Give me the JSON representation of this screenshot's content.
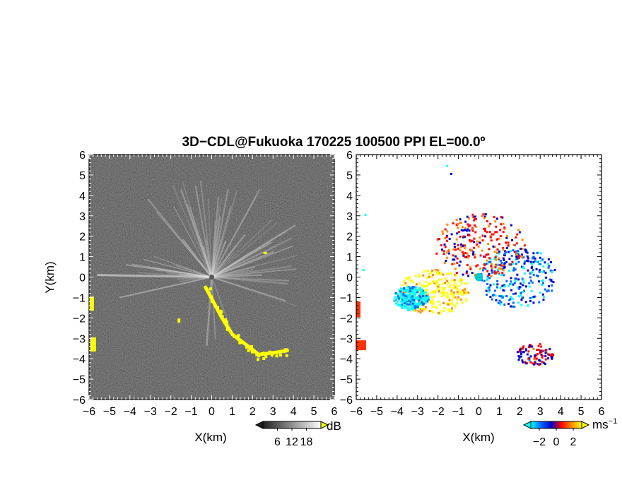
{
  "title": "3D−CDL@Fukuoka 170225 100500 PPI EL=00.0º",
  "chart_data": [
    {
      "type": "heatmap",
      "panel": "left",
      "quantity": "SNR",
      "xlabel": "X(km)",
      "ylabel": "Y(km)",
      "xlim": [
        -6,
        6
      ],
      "ylim": [
        -6,
        6
      ],
      "xticks": [
        "−6",
        "−5",
        "−4",
        "−3",
        "−2",
        "−1",
        "0",
        "1",
        "2",
        "3",
        "4",
        "5",
        "6"
      ],
      "yticks": [
        "6",
        "5",
        "4",
        "3",
        "2",
        "1",
        "0",
        "−1",
        "−2",
        "−3",
        "−4",
        "−5",
        "−6"
      ],
      "background": "noisy dark grey",
      "colorbar": {
        "unit": "dB",
        "ticks": [
          "6",
          "12",
          "18"
        ],
        "range": [
          0,
          24
        ],
        "colors": [
          "#202020",
          "#ffffff"
        ],
        "over_color": "#ffff00"
      },
      "features": [
        {
          "name": "radial beams",
          "fan": "northeast / east / west",
          "level": "bright grey"
        },
        {
          "name": "hard target echo",
          "path": [
            [
              -0.3,
              -0.5
            ],
            [
              0.5,
              -2.0
            ],
            [
              1.0,
              -2.8
            ],
            [
              1.8,
              -3.4
            ],
            [
              2.3,
              -3.8
            ],
            [
              3.1,
              -3.7
            ],
            [
              3.7,
              -3.6
            ]
          ],
          "color": "#ffff00"
        },
        {
          "name": "west edge echo",
          "points": [
            [
              -5.9,
              -1.3
            ],
            [
              -5.8,
              -3.3
            ]
          ],
          "color": "#ffff00"
        }
      ]
    },
    {
      "type": "heatmap",
      "panel": "right",
      "quantity": "radial velocity",
      "xlabel": "X(km)",
      "ylabel": "",
      "xlim": [
        -6,
        6
      ],
      "ylim": [
        -6,
        6
      ],
      "xticks": [
        "−6",
        "−5",
        "−4",
        "−3",
        "−2",
        "−1",
        "0",
        "1",
        "2",
        "3",
        "4",
        "5",
        "6"
      ],
      "yticks": [
        "6",
        "5",
        "4",
        "3",
        "2",
        "1",
        "0",
        "−1",
        "−2",
        "−3",
        "−4",
        "−5",
        "−6"
      ],
      "background": "white",
      "colorbar": {
        "unit": "ms",
        "unit_exponent": "−1",
        "ticks": [
          "−2",
          "0",
          "2"
        ],
        "range": [
          -3,
          3
        ],
        "colors": [
          "#00ffff",
          "#0066ff",
          "#0000cc",
          "#ff0000",
          "#ff8800",
          "#ffff00"
        ]
      },
      "features": [
        {
          "name": "westward plume",
          "x": [
            -4,
            -0.5
          ],
          "y": [
            -1.8,
            0.4
          ],
          "velocity_ms": 2.5,
          "color": "#ffcc00"
        },
        {
          "name": "cyan tongue",
          "x": [
            -4.2,
            -2.5
          ],
          "y": [
            -1.6,
            -0.4
          ],
          "velocity_ms": -2.5,
          "color": "#00ffff"
        },
        {
          "name": "eastern receding sector",
          "x": [
            0,
            3.8
          ],
          "y": [
            -1.5,
            1.5
          ],
          "velocity_ms": -1.5,
          "color": "#0066ff"
        },
        {
          "name": "northern fan",
          "x": [
            -2.2,
            2.2
          ],
          "y": [
            0,
            3.2
          ],
          "velocity_ms": 0.5,
          "color": "#ff3300"
        },
        {
          "name": "south-east hard target",
          "x": [
            1.8,
            3.6
          ],
          "y": [
            -4.3,
            -3.2
          ],
          "velocity_ms": 0.0,
          "color": "#ff0000"
        }
      ]
    }
  ]
}
